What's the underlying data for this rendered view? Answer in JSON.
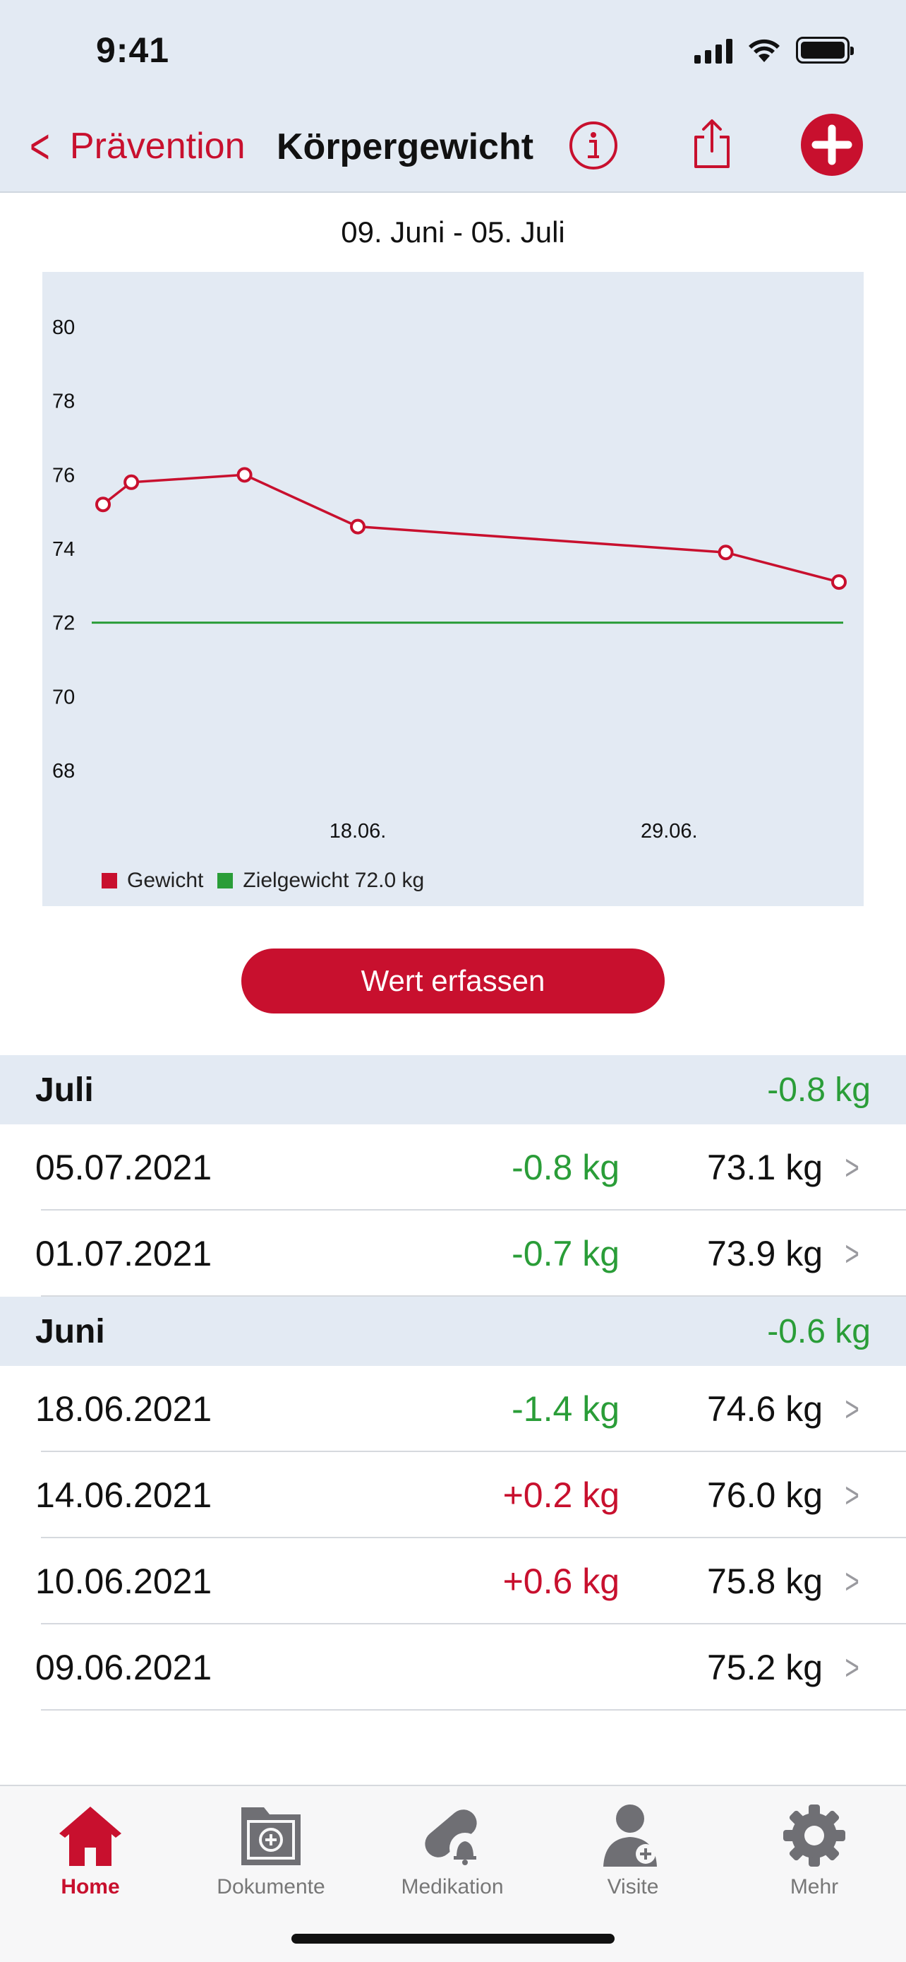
{
  "status_bar": {
    "time": "9:41"
  },
  "nav": {
    "back_label": "Prävention",
    "title": "Körpergewicht",
    "icons": [
      "info-icon",
      "share-icon",
      "add-icon"
    ]
  },
  "colors": {
    "accent": "#c8102e",
    "goal": "#2a9d38",
    "panel": "#e3eaf3"
  },
  "range_label": "09. Juni - 05. Juli",
  "chart_data": {
    "type": "line",
    "y_ticks": [
      "80",
      "78",
      "76",
      "74",
      "72",
      "70",
      "68"
    ],
    "ylim": [
      68,
      80
    ],
    "x_tick_labels": [
      "18.06.",
      "29.06."
    ],
    "series": [
      {
        "name": "Gewicht",
        "color": "#c8102e",
        "points": [
          {
            "x": "2021-06-09",
            "y": 75.2
          },
          {
            "x": "2021-06-10",
            "y": 75.8
          },
          {
            "x": "2021-06-14",
            "y": 76.0
          },
          {
            "x": "2021-06-18",
            "y": 74.6
          },
          {
            "x": "2021-07-01",
            "y": 73.9
          },
          {
            "x": "2021-07-05",
            "y": 73.1
          }
        ]
      },
      {
        "name": "Zielgewicht 72.0 kg",
        "color": "#2a9d38",
        "value": 72.0
      }
    ],
    "legend": [
      "Gewicht",
      "Zielgewicht 72.0 kg"
    ],
    "legend_position": "bottom-left",
    "grid": false
  },
  "button": {
    "label": "Wert erfassen"
  },
  "sections": [
    {
      "month": "Juli",
      "total": "-0.8 kg",
      "total_color": "green",
      "rows": [
        {
          "date": "05.07.2021",
          "delta": "-0.8 kg",
          "delta_color": "green",
          "value": "73.1 kg"
        },
        {
          "date": "01.07.2021",
          "delta": "-0.7 kg",
          "delta_color": "green",
          "value": "73.9 kg"
        }
      ]
    },
    {
      "month": "Juni",
      "total": "-0.6 kg",
      "total_color": "green",
      "rows": [
        {
          "date": "18.06.2021",
          "delta": "-1.4 kg",
          "delta_color": "green",
          "value": "74.6 kg"
        },
        {
          "date": "14.06.2021",
          "delta": "+0.2 kg",
          "delta_color": "red",
          "value": "76.0 kg"
        },
        {
          "date": "10.06.2021",
          "delta": "+0.6 kg",
          "delta_color": "red",
          "value": "75.8 kg"
        },
        {
          "date": "09.06.2021",
          "delta": "",
          "delta_color": "green",
          "value": "75.2 kg"
        }
      ]
    }
  ],
  "tabs": [
    {
      "label": "Home",
      "icon": "home-icon",
      "active": true
    },
    {
      "label": "Dokumente",
      "icon": "documents-icon",
      "active": false
    },
    {
      "label": "Medikation",
      "icon": "medication-icon",
      "active": false
    },
    {
      "label": "Visite",
      "icon": "doctor-icon",
      "active": false
    },
    {
      "label": "Mehr",
      "icon": "gear-icon",
      "active": false
    }
  ]
}
